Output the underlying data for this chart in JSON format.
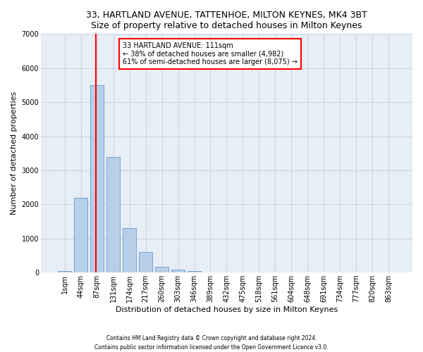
{
  "title1": "33, HARTLAND AVENUE, TATTENHOE, MILTON KEYNES, MK4 3BT",
  "title2": "Size of property relative to detached houses in Milton Keynes",
  "xlabel": "Distribution of detached houses by size in Milton Keynes",
  "ylabel": "Number of detached properties",
  "footer1": "Contains HM Land Registry data © Crown copyright and database right 2024.",
  "footer2": "Contains public sector information licensed under the Open Government Licence v3.0.",
  "bar_labels": [
    "1sqm",
    "44sqm",
    "87sqm",
    "131sqm",
    "174sqm",
    "217sqm",
    "260sqm",
    "303sqm",
    "346sqm",
    "389sqm",
    "432sqm",
    "475sqm",
    "518sqm",
    "561sqm",
    "604sqm",
    "648sqm",
    "691sqm",
    "734sqm",
    "777sqm",
    "820sqm",
    "863sqm"
  ],
  "bar_values": [
    50,
    2200,
    5500,
    3400,
    1300,
    600,
    170,
    80,
    50,
    0,
    0,
    0,
    0,
    0,
    0,
    0,
    0,
    0,
    0,
    0,
    0
  ],
  "bar_color": "#b8cfe8",
  "bar_edge_color": "#6699cc",
  "grid_color": "#c8d4e4",
  "background_color": "#e8eef6",
  "annotation_text": "33 HARTLAND AVENUE: 111sqm\n← 38% of detached houses are smaller (4,982)\n61% of semi-detached houses are larger (8,075) →",
  "annotation_box_color": "white",
  "annotation_border_color": "red",
  "red_line_color": "red",
  "red_line_bar_index": 2,
  "ylim": [
    0,
    7000
  ],
  "yticks": [
    0,
    1000,
    2000,
    3000,
    4000,
    5000,
    6000,
    7000
  ],
  "title_fontsize": 9,
  "xlabel_fontsize": 8,
  "ylabel_fontsize": 8,
  "tick_fontsize": 7,
  "annotation_fontsize": 7,
  "footer_fontsize": 5.5
}
